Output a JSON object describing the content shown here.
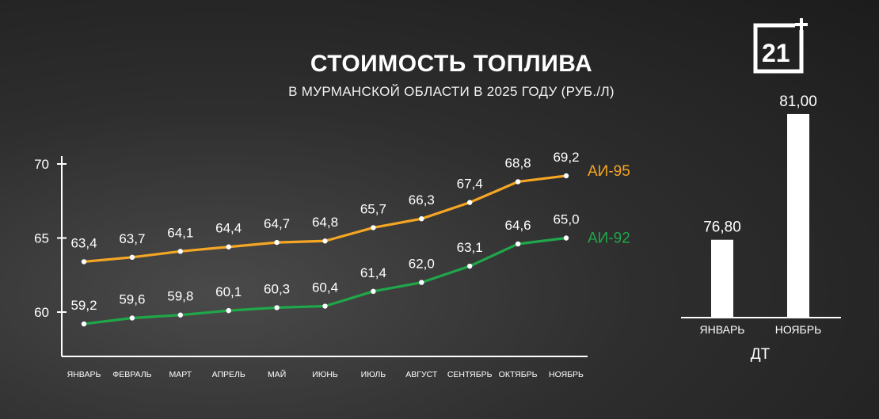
{
  "title": "СТОИМОСТЬ ТОПЛИВА",
  "subtitle": "В МУРМАНСКОЙ ОБЛАСТИ В 2025 ГОДУ (РУБ./Л)",
  "logo": {
    "text": "21",
    "icon": "tv-channel-21-plus-logo"
  },
  "chart_data": [
    {
      "type": "line",
      "categories": [
        "ЯНВАРЬ",
        "ФЕВРАЛЬ",
        "МАРТ",
        "АПРЕЛЬ",
        "МАЙ",
        "ИЮНЬ",
        "ИЮЛЬ",
        "АВГУСТ",
        "СЕНТЯБРЬ",
        "ОКТЯБРЬ",
        "НОЯБРЬ"
      ],
      "yticks": [
        "60",
        "65",
        "70"
      ],
      "ylim": [
        57.5,
        70.5
      ],
      "series": [
        {
          "name": "АИ-95",
          "color": "#f5a623",
          "values": [
            63.4,
            63.7,
            64.1,
            64.4,
            64.7,
            64.8,
            65.7,
            66.3,
            67.4,
            68.8,
            69.2
          ],
          "labels": [
            "63,4",
            "63,7",
            "64,1",
            "64,4",
            "64,7",
            "64,8",
            "65,7",
            "66,3",
            "67,4",
            "68,8",
            "69,2"
          ]
        },
        {
          "name": "АИ-92",
          "color": "#1fa74a",
          "values": [
            59.2,
            59.6,
            59.8,
            60.1,
            60.3,
            60.4,
            61.4,
            62.0,
            63.1,
            64.6,
            65.0
          ],
          "labels": [
            "59,2",
            "59,6",
            "59,8",
            "60,1",
            "60,3",
            "60,4",
            "61,4",
            "62,0",
            "63,1",
            "64,6",
            "65,0"
          ]
        }
      ]
    },
    {
      "type": "bar",
      "title": "ДТ",
      "categories": [
        "ЯНВАРЬ",
        "НОЯБРЬ"
      ],
      "values": [
        76.8,
        81.0
      ],
      "labels": [
        "76,80",
        "81,00"
      ]
    }
  ]
}
